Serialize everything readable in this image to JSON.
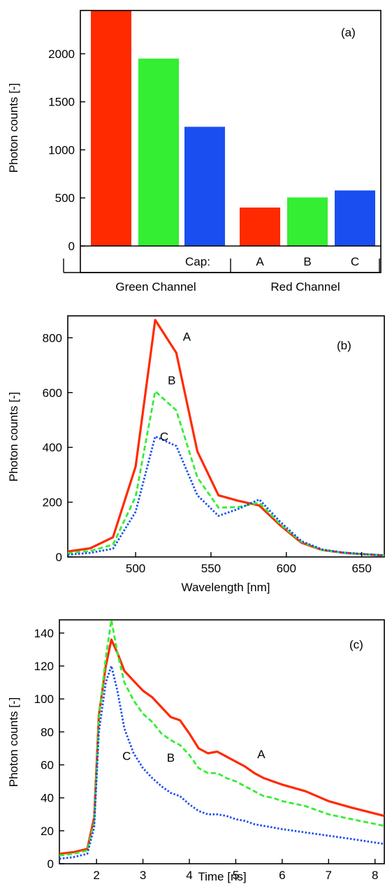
{
  "colors": {
    "A": "#ff2a00",
    "B": "#33ee33",
    "C": "#1a4ef0"
  },
  "chart_data": [
    {
      "type": "bar",
      "panel_label": "(a)",
      "ylabel": "Photon counts [-]",
      "ylim": [
        0,
        2450
      ],
      "yticks": [
        0,
        500,
        1000,
        1500,
        2000
      ],
      "groups": [
        {
          "label": "Green Channel",
          "values": [
            2450,
            1950,
            1240
          ]
        },
        {
          "label": "Red Channel",
          "values": [
            400,
            505,
            578
          ]
        }
      ],
      "series": [
        {
          "name": "A",
          "color": "#ff2a00"
        },
        {
          "name": "B",
          "color": "#33ee33"
        },
        {
          "name": "C",
          "color": "#1a4ef0"
        }
      ],
      "cap_label": "Cap:",
      "grid": false
    },
    {
      "type": "line",
      "panel_label": "(b)",
      "xlabel": "Wavelength [nm]",
      "ylabel": "Photon counts [-]",
      "xlim": [
        455,
        665
      ],
      "ylim": [
        0,
        880
      ],
      "xticks": [
        500,
        550,
        600,
        650
      ],
      "yticks": [
        0,
        200,
        400,
        600,
        800
      ],
      "grid": false,
      "series": [
        {
          "name": "A",
          "color": "#ff2a00",
          "style": "solid",
          "x": [
            455,
            470,
            485,
            500,
            513,
            527,
            541,
            555,
            568,
            582,
            596,
            610,
            624,
            638,
            652,
            665
          ],
          "y": [
            20,
            32,
            72,
            330,
            865,
            745,
            385,
            225,
            205,
            188,
            115,
            52,
            25,
            15,
            10,
            5
          ]
        },
        {
          "name": "B",
          "color": "#33ee33",
          "style": "dashed",
          "x": [
            455,
            470,
            485,
            500,
            513,
            527,
            541,
            555,
            568,
            582,
            596,
            610,
            624,
            638,
            652,
            665
          ],
          "y": [
            14,
            22,
            45,
            220,
            605,
            535,
            290,
            180,
            182,
            198,
            120,
            55,
            25,
            15,
            10,
            5
          ]
        },
        {
          "name": "C",
          "color": "#1a4ef0",
          "style": "dotted",
          "x": [
            455,
            470,
            485,
            500,
            513,
            527,
            541,
            555,
            568,
            582,
            596,
            610,
            624,
            638,
            652,
            665
          ],
          "y": [
            8,
            15,
            30,
            165,
            440,
            405,
            225,
            150,
            175,
            210,
            128,
            58,
            27,
            16,
            10,
            6
          ]
        }
      ],
      "annotations": [
        {
          "text": "A",
          "x": 534,
          "y": 790
        },
        {
          "text": "B",
          "x": 524,
          "y": 630
        },
        {
          "text": "C",
          "x": 519,
          "y": 425
        }
      ]
    },
    {
      "type": "line",
      "panel_label": "(c)",
      "xlabel": "Time [ns]",
      "ylabel": "Photon counts [-]",
      "xlim": [
        1.2,
        8.2
      ],
      "ylim": [
        0,
        148
      ],
      "xticks": [
        2,
        3,
        4,
        5,
        6,
        7,
        8
      ],
      "yticks": [
        0,
        20,
        40,
        60,
        80,
        100,
        120,
        140
      ],
      "grid": false,
      "series": [
        {
          "name": "A",
          "color": "#ff2a00",
          "style": "solid",
          "x": [
            1.2,
            1.5,
            1.8,
            1.95,
            2.05,
            2.2,
            2.32,
            2.45,
            2.6,
            2.8,
            3.0,
            3.2,
            3.4,
            3.6,
            3.8,
            4.0,
            4.2,
            4.4,
            4.6,
            4.8,
            5.0,
            5.2,
            5.4,
            5.6,
            5.8,
            6.0,
            6.5,
            7.0,
            7.5,
            8.2
          ],
          "y": [
            6,
            7,
            9,
            28,
            90,
            120,
            136,
            128,
            117,
            111,
            105,
            101,
            95,
            89,
            87,
            79,
            70,
            67,
            68,
            65,
            62,
            59,
            55,
            52,
            50,
            48,
            44,
            38,
            34,
            29
          ]
        },
        {
          "name": "B",
          "color": "#33ee33",
          "style": "dashed",
          "x": [
            1.2,
            1.5,
            1.8,
            1.95,
            2.05,
            2.2,
            2.32,
            2.45,
            2.6,
            2.8,
            3.0,
            3.2,
            3.4,
            3.6,
            3.8,
            4.0,
            4.2,
            4.4,
            4.6,
            4.8,
            5.0,
            5.2,
            5.4,
            5.6,
            5.8,
            6.0,
            6.5,
            7.0,
            7.5,
            8.2
          ],
          "y": [
            5,
            6,
            8,
            25,
            88,
            125,
            148,
            128,
            110,
            99,
            91,
            86,
            79,
            75,
            72,
            66,
            58,
            55,
            55,
            52,
            50,
            47,
            44,
            41,
            40,
            38,
            35,
            30,
            27,
            23
          ]
        },
        {
          "name": "C",
          "color": "#1a4ef0",
          "style": "dotted",
          "x": [
            1.2,
            1.5,
            1.8,
            1.95,
            2.05,
            2.2,
            2.32,
            2.45,
            2.6,
            2.8,
            3.0,
            3.2,
            3.4,
            3.6,
            3.8,
            4.0,
            4.2,
            4.4,
            4.6,
            4.8,
            5.0,
            5.2,
            5.4,
            5.6,
            5.8,
            6.0,
            6.5,
            7.0,
            7.5,
            8.2
          ],
          "y": [
            3,
            4,
            6,
            22,
            80,
            110,
            120,
            105,
            82,
            67,
            58,
            52,
            47,
            43,
            41,
            36,
            32,
            30,
            30,
            29,
            27,
            26,
            24,
            23,
            22,
            21,
            19,
            17,
            15,
            12
          ]
        }
      ],
      "annotations": [
        {
          "text": "A",
          "x": 5.55,
          "y": 64
        },
        {
          "text": "B",
          "x": 3.6,
          "y": 62
        },
        {
          "text": "C",
          "x": 2.65,
          "y": 63
        }
      ]
    }
  ]
}
